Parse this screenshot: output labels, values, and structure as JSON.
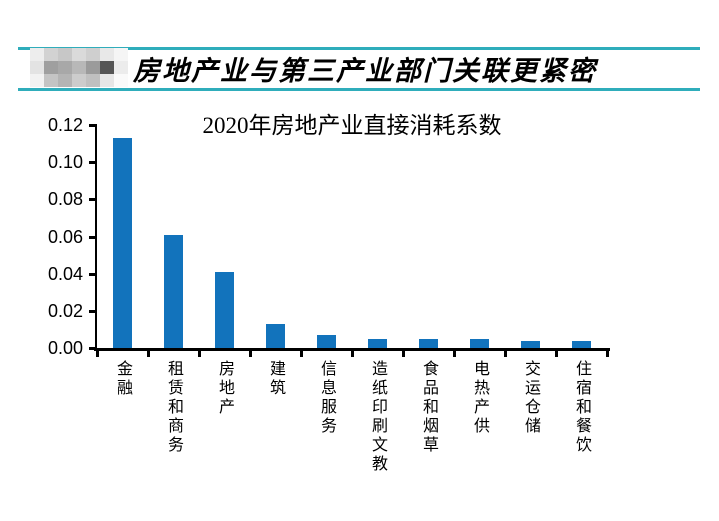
{
  "header": {
    "title": "房地产业与第三产业部门关联更紧密",
    "rule_color": "#2FADBB",
    "logo_pixels": [
      [
        "#ededed",
        "#d2d2d2",
        "#c7c7c7",
        "#dadada",
        "#cfcfcf",
        "#e8e8e8",
        "#f5f5f5"
      ],
      [
        "#e3e3e3",
        "#9f9f9f",
        "#a8a8a8",
        "#b8b8b8",
        "#9b9b9b",
        "#555555",
        "#ececec"
      ],
      [
        "#f2f2f2",
        "#c4c4c4",
        "#b4b4b4",
        "#cccccc",
        "#c0c0c0",
        "#e6e6e6",
        "#fafafa"
      ]
    ]
  },
  "chart_data": {
    "type": "bar",
    "title": "2020年房地产业直接消耗系数",
    "categories": [
      "金融",
      "租赁和商务",
      "房地产",
      "建筑",
      "信息服务",
      "造纸印刷文教",
      "食品和烟草",
      "电热产供",
      "交运仓储",
      "住宿和餐饮"
    ],
    "values": [
      0.113,
      0.061,
      0.041,
      0.013,
      0.007,
      0.005,
      0.005,
      0.005,
      0.004,
      0.004
    ],
    "xlabel": "",
    "ylabel": "",
    "ylim": [
      0,
      0.12
    ],
    "ytick_step": 0.02,
    "ytick_labels": [
      "0.00",
      "0.02",
      "0.04",
      "0.06",
      "0.08",
      "0.10",
      "0.12"
    ],
    "bar_color": "#1273BC",
    "axis_color": "#000000",
    "grid": false,
    "legend": "none"
  }
}
